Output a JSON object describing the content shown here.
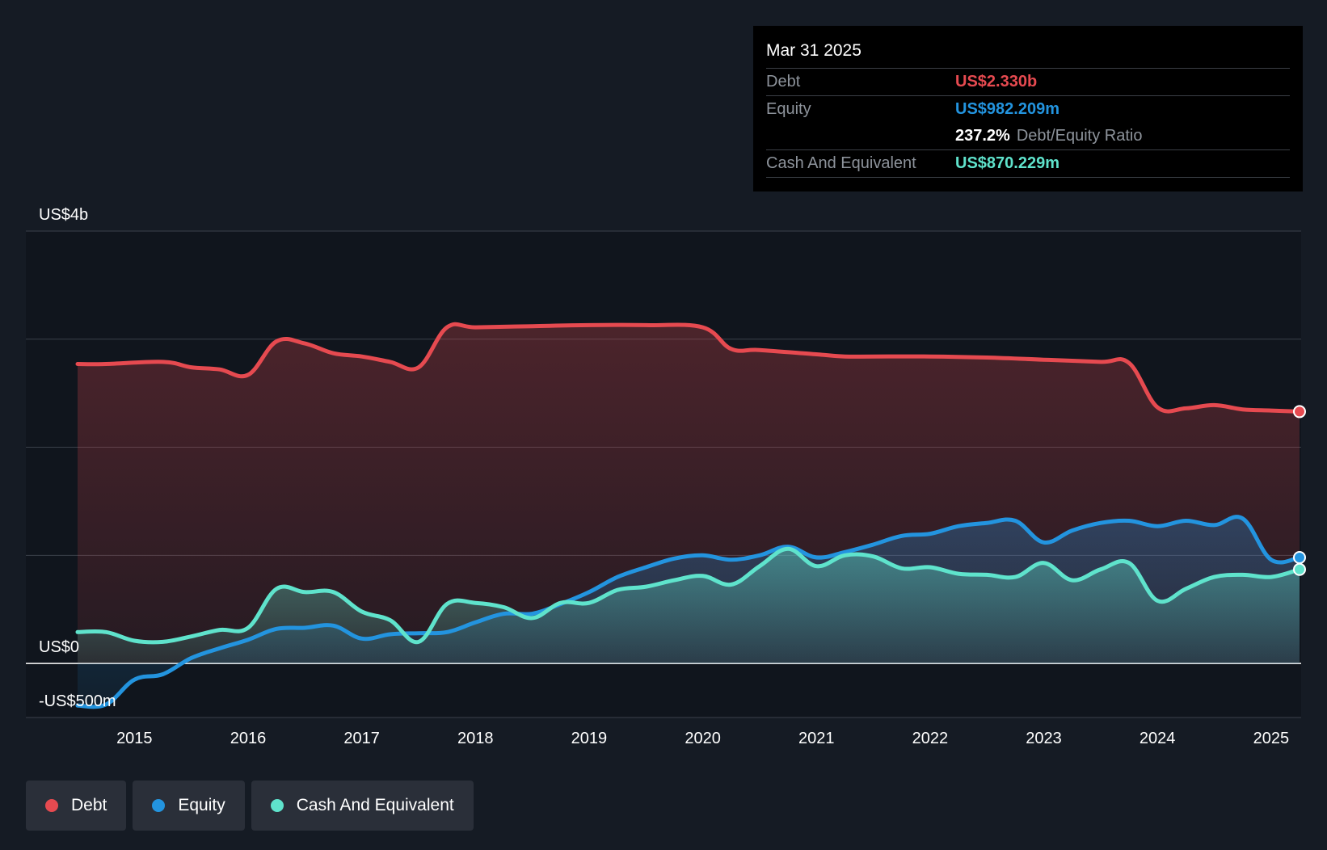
{
  "chart_data": {
    "type": "area",
    "title": "",
    "xlabel": "",
    "ylabel": "",
    "y_unit": "US$ billions",
    "ylim": [
      -0.5,
      4.0
    ],
    "xlim": [
      2014.5,
      2025.25
    ],
    "grid": true,
    "legend_position": "bottom-left",
    "y_axis_labels": [
      {
        "value": 4.0,
        "label": "US$4b"
      },
      {
        "value": 0.0,
        "label": "US$0"
      },
      {
        "value": -0.5,
        "label": "-US$500m"
      }
    ],
    "y_gridlines": [
      4.0,
      3.0,
      2.0,
      1.0,
      0.0,
      -0.5
    ],
    "x_ticks": [
      {
        "value": 2015,
        "label": "2015"
      },
      {
        "value": 2016,
        "label": "2016"
      },
      {
        "value": 2017,
        "label": "2017"
      },
      {
        "value": 2018,
        "label": "2018"
      },
      {
        "value": 2019,
        "label": "2019"
      },
      {
        "value": 2020,
        "label": "2020"
      },
      {
        "value": 2021,
        "label": "2021"
      },
      {
        "value": 2022,
        "label": "2022"
      },
      {
        "value": 2023,
        "label": "2023"
      },
      {
        "value": 2024,
        "label": "2024"
      },
      {
        "value": 2025,
        "label": "2025"
      }
    ],
    "series": [
      {
        "name": "Debt",
        "color": "#e64a50",
        "x": [
          2014.5,
          2014.75,
          2015.25,
          2015.5,
          2015.75,
          2016.0,
          2016.25,
          2016.5,
          2016.75,
          2017.0,
          2017.25,
          2017.5,
          2017.75,
          2018.0,
          2018.5,
          2019.0,
          2019.5,
          2020.0,
          2020.25,
          2020.5,
          2021.0,
          2021.25,
          2021.5,
          2022.0,
          2022.5,
          2023.0,
          2023.5,
          2023.75,
          2024.0,
          2024.25,
          2024.5,
          2024.75,
          2025.0,
          2025.25
        ],
        "values": [
          2.77,
          2.77,
          2.79,
          2.74,
          2.72,
          2.67,
          2.98,
          2.96,
          2.87,
          2.84,
          2.79,
          2.74,
          3.11,
          3.11,
          3.12,
          3.13,
          3.13,
          3.11,
          2.91,
          2.9,
          2.86,
          2.84,
          2.84,
          2.84,
          2.83,
          2.81,
          2.79,
          2.78,
          2.37,
          2.36,
          2.39,
          2.35,
          2.34,
          2.33
        ]
      },
      {
        "name": "Equity",
        "color": "#2394df",
        "x": [
          2014.5,
          2014.75,
          2015.0,
          2015.25,
          2015.5,
          2015.75,
          2016.0,
          2016.25,
          2016.5,
          2016.75,
          2017.0,
          2017.25,
          2017.5,
          2017.75,
          2018.0,
          2018.25,
          2018.5,
          2018.75,
          2019.0,
          2019.25,
          2019.5,
          2019.75,
          2020.0,
          2020.25,
          2020.5,
          2020.75,
          2021.0,
          2021.25,
          2021.5,
          2021.75,
          2022.0,
          2022.25,
          2022.5,
          2022.75,
          2023.0,
          2023.25,
          2023.5,
          2023.75,
          2024.0,
          2024.25,
          2024.5,
          2024.75,
          2025.0,
          2025.25
        ],
        "values": [
          -0.39,
          -0.38,
          -0.15,
          -0.1,
          0.05,
          0.14,
          0.22,
          0.32,
          0.33,
          0.35,
          0.23,
          0.27,
          0.28,
          0.29,
          0.38,
          0.46,
          0.46,
          0.55,
          0.66,
          0.8,
          0.89,
          0.97,
          1.0,
          0.96,
          1.0,
          1.08,
          0.98,
          1.03,
          1.1,
          1.18,
          1.2,
          1.27,
          1.3,
          1.32,
          1.12,
          1.23,
          1.3,
          1.32,
          1.27,
          1.32,
          1.28,
          1.34,
          0.96,
          0.98
        ]
      },
      {
        "name": "Cash And Equivalent",
        "color": "#5fe3cc",
        "x": [
          2014.5,
          2014.75,
          2015.0,
          2015.25,
          2015.5,
          2015.75,
          2016.0,
          2016.25,
          2016.5,
          2016.75,
          2017.0,
          2017.25,
          2017.5,
          2017.75,
          2018.0,
          2018.25,
          2018.5,
          2018.75,
          2019.0,
          2019.25,
          2019.5,
          2019.75,
          2020.0,
          2020.25,
          2020.5,
          2020.75,
          2021.0,
          2021.25,
          2021.5,
          2021.75,
          2022.0,
          2022.25,
          2022.5,
          2022.75,
          2023.0,
          2023.25,
          2023.5,
          2023.75,
          2024.0,
          2024.25,
          2024.5,
          2024.75,
          2025.0,
          2025.25
        ],
        "values": [
          0.29,
          0.29,
          0.21,
          0.2,
          0.25,
          0.31,
          0.33,
          0.69,
          0.66,
          0.66,
          0.48,
          0.4,
          0.2,
          0.55,
          0.56,
          0.52,
          0.42,
          0.56,
          0.56,
          0.68,
          0.71,
          0.77,
          0.81,
          0.73,
          0.9,
          1.06,
          0.9,
          1.0,
          0.99,
          0.88,
          0.89,
          0.83,
          0.82,
          0.8,
          0.93,
          0.77,
          0.87,
          0.93,
          0.58,
          0.69,
          0.8,
          0.82,
          0.8,
          0.87
        ]
      }
    ],
    "tooltip": {
      "date": "Mar 31 2025",
      "rows": [
        {
          "label": "Debt",
          "value": "US$2.330b",
          "color": "#e64a50"
        },
        {
          "label": "Equity",
          "value": "US$982.209m",
          "color": "#2394df"
        },
        {
          "ratio_value": "237.2%",
          "ratio_label": "Debt/Equity Ratio"
        },
        {
          "label": "Cash And Equivalent",
          "value": "US$870.229m",
          "color": "#5fe3cc"
        }
      ]
    }
  },
  "legend": {
    "items": [
      {
        "label": "Debt",
        "color": "#e64a50"
      },
      {
        "label": "Equity",
        "color": "#2394df"
      },
      {
        "label": "Cash And Equivalent",
        "color": "#5fe3cc"
      }
    ]
  }
}
